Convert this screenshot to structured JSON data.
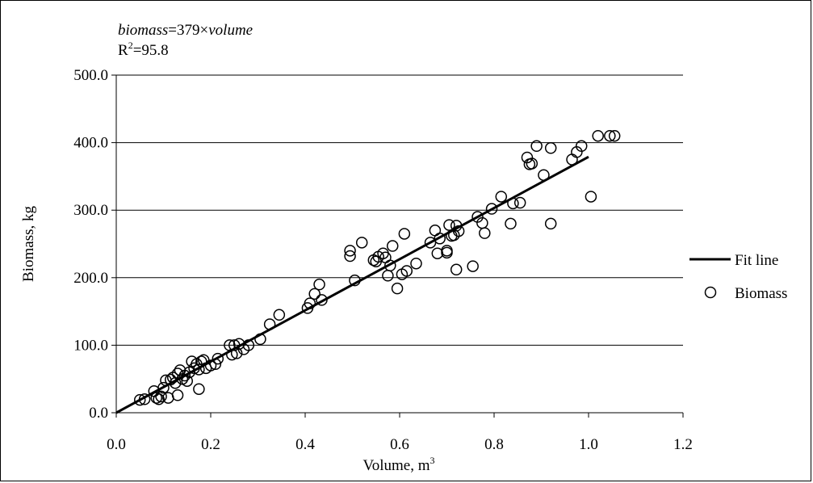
{
  "chart_data": {
    "type": "scatter",
    "title": "",
    "annotation": {
      "equation_var1": "biomass",
      "equation_mid": "=379×",
      "equation_var2": "volume",
      "r2_prefix": "R",
      "r2_sup": "2",
      "r2_value": "=95.8"
    },
    "xlabel": "Volume, m",
    "xlabel_sup": "3",
    "ylabel": "Biomass, kg",
    "xlim": [
      0.0,
      1.2
    ],
    "ylim": [
      0.0,
      500.0
    ],
    "x_ticks": [
      0.0,
      0.2,
      0.4,
      0.6,
      0.8,
      1.0,
      1.2
    ],
    "x_tick_labels": [
      "0.0",
      "0.2",
      "0.4",
      "0.6",
      "0.8",
      "1.0",
      "1.2"
    ],
    "y_ticks": [
      0,
      100,
      200,
      300,
      400,
      500
    ],
    "y_tick_labels": [
      "0.0",
      "100.0",
      "200.0",
      "300.0",
      "400.0",
      "500.0"
    ],
    "grid": "horizontal",
    "legend_position": "right",
    "series": [
      {
        "name": "Fit line",
        "kind": "line",
        "color": "#000000",
        "x": [
          0.0,
          1.0
        ],
        "y": [
          0,
          379
        ]
      },
      {
        "name": "Biomass",
        "kind": "scatter",
        "marker": "open-circle",
        "color": "#000000",
        "points": [
          [
            0.05,
            19
          ],
          [
            0.06,
            20
          ],
          [
            0.08,
            32
          ],
          [
            0.085,
            22
          ],
          [
            0.09,
            20
          ],
          [
            0.095,
            24
          ],
          [
            0.1,
            37
          ],
          [
            0.105,
            48
          ],
          [
            0.11,
            22
          ],
          [
            0.115,
            49
          ],
          [
            0.12,
            52
          ],
          [
            0.125,
            44
          ],
          [
            0.13,
            58
          ],
          [
            0.13,
            26
          ],
          [
            0.135,
            63
          ],
          [
            0.14,
            50
          ],
          [
            0.145,
            55
          ],
          [
            0.15,
            47
          ],
          [
            0.155,
            60
          ],
          [
            0.16,
            76
          ],
          [
            0.165,
            66
          ],
          [
            0.17,
            72
          ],
          [
            0.175,
            35
          ],
          [
            0.175,
            64
          ],
          [
            0.18,
            76
          ],
          [
            0.185,
            78
          ],
          [
            0.19,
            66
          ],
          [
            0.2,
            70
          ],
          [
            0.21,
            72
          ],
          [
            0.215,
            80
          ],
          [
            0.24,
            100
          ],
          [
            0.245,
            86
          ],
          [
            0.25,
            100
          ],
          [
            0.255,
            88
          ],
          [
            0.26,
            102
          ],
          [
            0.27,
            94
          ],
          [
            0.28,
            100
          ],
          [
            0.305,
            109
          ],
          [
            0.325,
            131
          ],
          [
            0.345,
            145
          ],
          [
            0.405,
            155
          ],
          [
            0.41,
            162
          ],
          [
            0.42,
            176
          ],
          [
            0.43,
            190
          ],
          [
            0.435,
            167
          ],
          [
            0.495,
            240
          ],
          [
            0.495,
            232
          ],
          [
            0.505,
            196
          ],
          [
            0.52,
            252
          ],
          [
            0.545,
            226
          ],
          [
            0.55,
            224
          ],
          [
            0.555,
            231
          ],
          [
            0.565,
            236
          ],
          [
            0.57,
            230
          ],
          [
            0.575,
            203
          ],
          [
            0.58,
            218
          ],
          [
            0.585,
            247
          ],
          [
            0.595,
            184
          ],
          [
            0.605,
            205
          ],
          [
            0.61,
            265
          ],
          [
            0.615,
            210
          ],
          [
            0.635,
            221
          ],
          [
            0.665,
            252
          ],
          [
            0.675,
            270
          ],
          [
            0.68,
            236
          ],
          [
            0.685,
            258
          ],
          [
            0.7,
            240
          ],
          [
            0.7,
            237
          ],
          [
            0.705,
            278
          ],
          [
            0.71,
            262
          ],
          [
            0.715,
            263
          ],
          [
            0.72,
            277
          ],
          [
            0.72,
            212
          ],
          [
            0.725,
            269
          ],
          [
            0.755,
            217
          ],
          [
            0.765,
            290
          ],
          [
            0.775,
            281
          ],
          [
            0.78,
            266
          ],
          [
            0.795,
            302
          ],
          [
            0.815,
            320
          ],
          [
            0.835,
            280
          ],
          [
            0.84,
            310
          ],
          [
            0.855,
            311
          ],
          [
            0.87,
            378
          ],
          [
            0.875,
            368
          ],
          [
            0.88,
            369
          ],
          [
            0.89,
            395
          ],
          [
            0.905,
            352
          ],
          [
            0.92,
            280
          ],
          [
            0.92,
            392
          ],
          [
            0.965,
            375
          ],
          [
            0.975,
            386
          ],
          [
            0.985,
            395
          ],
          [
            1.005,
            320
          ],
          [
            1.02,
            410
          ],
          [
            1.045,
            410
          ],
          [
            1.055,
            410
          ]
        ]
      }
    ]
  }
}
